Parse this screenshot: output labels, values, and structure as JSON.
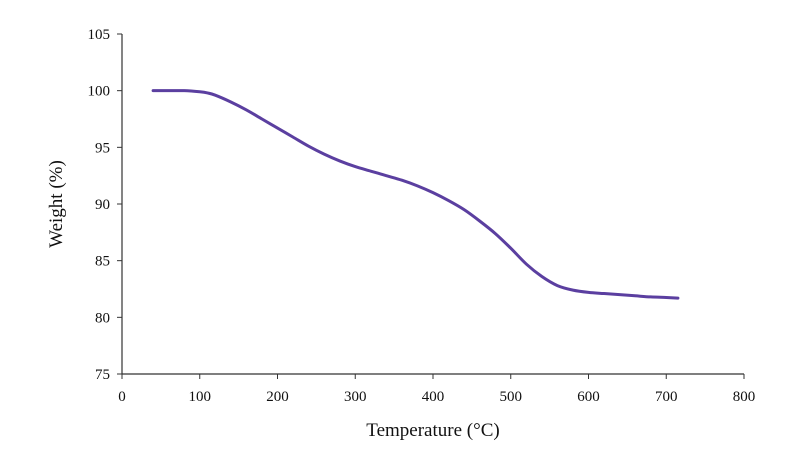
{
  "chart_data": {
    "type": "line",
    "title": "",
    "xlabel": "Temperature (°C)",
    "ylabel": "Weight (%)",
    "xlim": [
      0,
      800
    ],
    "ylim": [
      75,
      105
    ],
    "xticks": [
      0,
      100,
      200,
      300,
      400,
      500,
      600,
      700,
      800
    ],
    "yticks": [
      75,
      80,
      85,
      90,
      95,
      100,
      105
    ],
    "grid": false,
    "series": [
      {
        "name": "Weight",
        "color": "#5b3fa0",
        "x": [
          40,
          60,
          80,
          100,
          110,
          120,
          140,
          160,
          180,
          200,
          220,
          240,
          260,
          280,
          300,
          320,
          340,
          360,
          380,
          400,
          420,
          440,
          460,
          480,
          500,
          520,
          540,
          560,
          580,
          600,
          620,
          640,
          660,
          680,
          700,
          715
        ],
        "y": [
          100.0,
          100.0,
          100.0,
          99.9,
          99.8,
          99.6,
          99.0,
          98.3,
          97.5,
          96.7,
          95.9,
          95.1,
          94.4,
          93.8,
          93.3,
          92.9,
          92.5,
          92.1,
          91.6,
          91.0,
          90.3,
          89.5,
          88.5,
          87.4,
          86.1,
          84.7,
          83.6,
          82.8,
          82.4,
          82.2,
          82.1,
          82.0,
          81.9,
          81.8,
          81.75,
          81.7
        ]
      }
    ]
  }
}
